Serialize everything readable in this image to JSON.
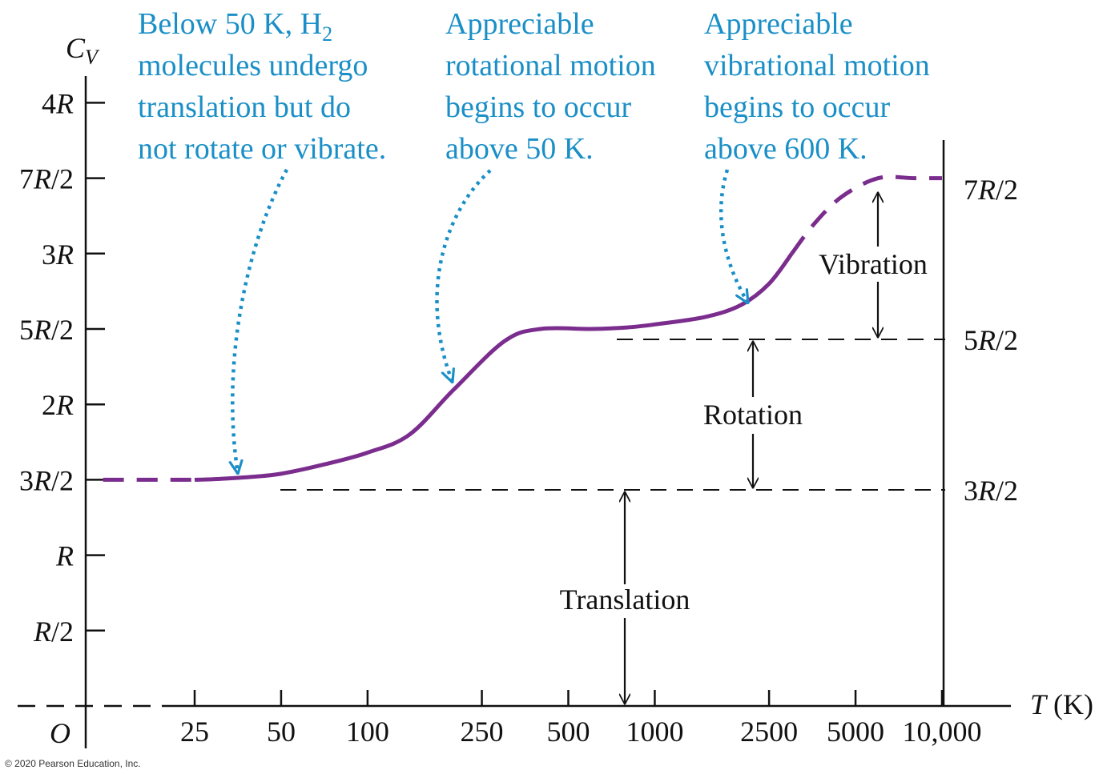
{
  "chart_data": {
    "type": "line",
    "title": "",
    "xlabel": "T (K)",
    "ylabel": "C_V",
    "x_scale": "log",
    "x_ticks": [
      "25",
      "50",
      "100",
      "250",
      "500",
      "1000",
      "2500",
      "5000",
      "10,000"
    ],
    "x_tick_values": [
      25,
      50,
      100,
      250,
      500,
      1000,
      2500,
      5000,
      10000
    ],
    "y_ticks": [
      "O",
      "R/2",
      "R",
      "3R/2",
      "2R",
      "5R/2",
      "3R",
      "7R/2",
      "4R"
    ],
    "y_tick_values_in_R": [
      0,
      0.5,
      1,
      1.5,
      2,
      2.5,
      3,
      3.5,
      4
    ],
    "right_labels": [
      "7R/2",
      "5R/2",
      "3R/2"
    ],
    "ylim_in_R": [
      0,
      4.4
    ],
    "series": [
      {
        "name": "",
        "color": "#7b2d8e",
        "T": [
          12,
          25,
          30,
          40,
          50,
          70,
          100,
          140,
          200,
          300,
          400,
          600,
          800,
          1000,
          1500,
          2000,
          2500,
          3000,
          3600,
          4500,
          6000,
          8000,
          10000
        ],
        "Cv_over_R": [
          1.5,
          1.5,
          1.505,
          1.52,
          1.54,
          1.6,
          1.68,
          1.8,
          2.1,
          2.42,
          2.5,
          2.5,
          2.51,
          2.53,
          2.58,
          2.66,
          2.8,
          3.0,
          3.2,
          3.38,
          3.5,
          3.5,
          3.5
        ]
      }
    ],
    "regions": [
      "Translation",
      "Rotation",
      "Vibration"
    ],
    "annotations": [
      [
        "Below 50 K, H",
        "molecules undergo",
        "translation but do",
        "not rotate or vibrate."
      ],
      [
        "Appreciable",
        "rotational motion",
        "begins to occur",
        "above 50 K."
      ],
      [
        "Appreciable",
        "vibrational motion",
        "begins to occur",
        "above 600 K."
      ]
    ],
    "annotation_subscript": "2",
    "copyright": "© 2020 Pearson Education, Inc.",
    "colors": {
      "curve": "#7b2d8e",
      "annotation": "#1a8fc7",
      "axis": "#111111"
    }
  }
}
